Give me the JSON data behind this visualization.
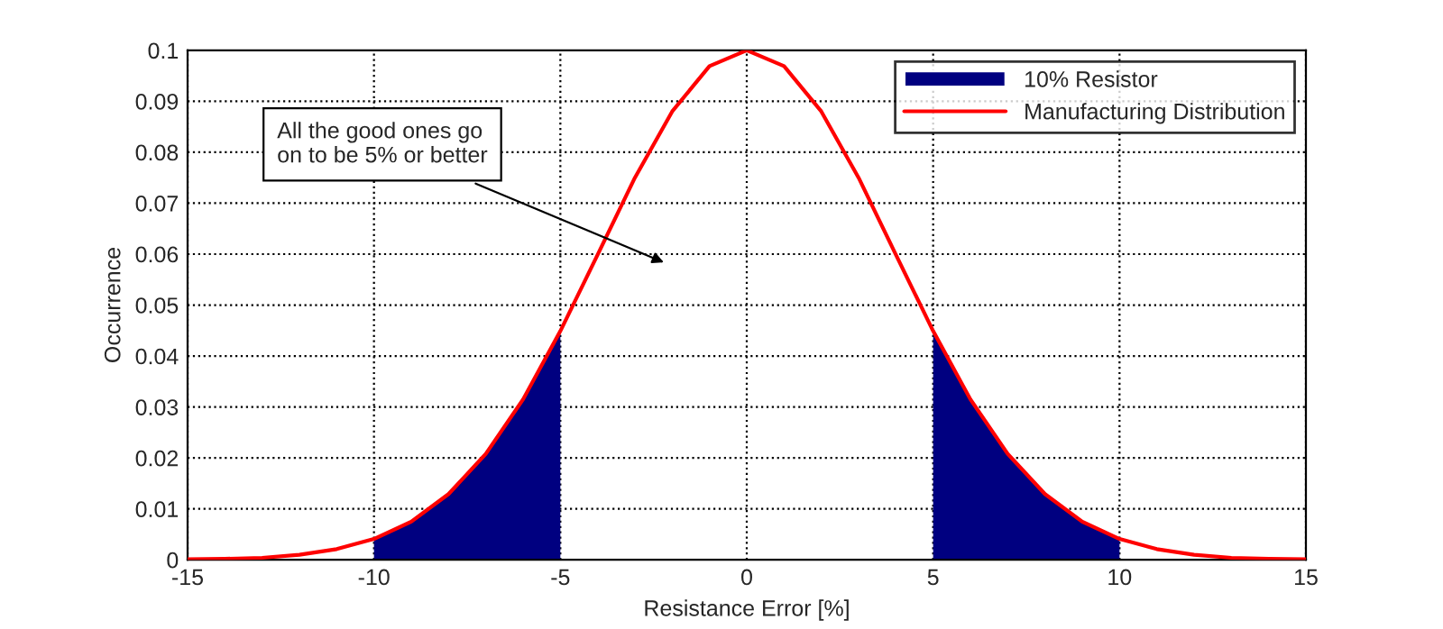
{
  "chart_data": {
    "type": "line",
    "xlabel": "Resistance Error [%]",
    "ylabel": "Occurrence",
    "xlim": [
      -15,
      15
    ],
    "xticks": [
      -15,
      -10,
      -5,
      0,
      5,
      10,
      15
    ],
    "ylim": [
      0,
      0.1
    ],
    "yticks": [
      0,
      0.01,
      0.02,
      0.03,
      0.04,
      0.05,
      0.06,
      0.07,
      0.08,
      0.09,
      0.1
    ],
    "grid": true,
    "legend": "top right",
    "series": [
      {
        "name": "10% Resistor",
        "type": "area",
        "color": "#000080",
        "x": [
          -10,
          -9,
          -8,
          -7,
          -6,
          -5,
          5,
          6,
          7,
          8,
          9,
          10
        ],
        "values": [
          0.0041,
          0.0075,
          0.0129,
          0.0208,
          0.0315,
          0.0449,
          0.0449,
          0.0315,
          0.0208,
          0.0129,
          0.0075,
          0.0041
        ]
      },
      {
        "name": "Manufacturing Distribution",
        "color": "#ff0000",
        "x": [
          -15,
          -14,
          -13,
          -12,
          -11,
          -10,
          -9,
          -8,
          -7,
          -6,
          -5,
          -4,
          -3,
          -2,
          -1,
          0,
          1,
          2,
          3,
          4,
          5,
          6,
          7,
          8,
          9,
          10,
          11,
          12,
          13,
          14,
          15
        ],
        "values": [
          0.0001,
          0.0002,
          0.0004,
          0.001,
          0.0021,
          0.0041,
          0.0075,
          0.0129,
          0.0208,
          0.0315,
          0.0449,
          0.0599,
          0.075,
          0.088,
          0.0969,
          0.1,
          0.0969,
          0.088,
          0.075,
          0.0599,
          0.0449,
          0.0315,
          0.0208,
          0.0129,
          0.0075,
          0.0041,
          0.0021,
          0.001,
          0.0004,
          0.0002,
          0.0001
        ]
      }
    ],
    "annotations": [
      "All the good ones go\non to be 5% or better"
    ]
  }
}
